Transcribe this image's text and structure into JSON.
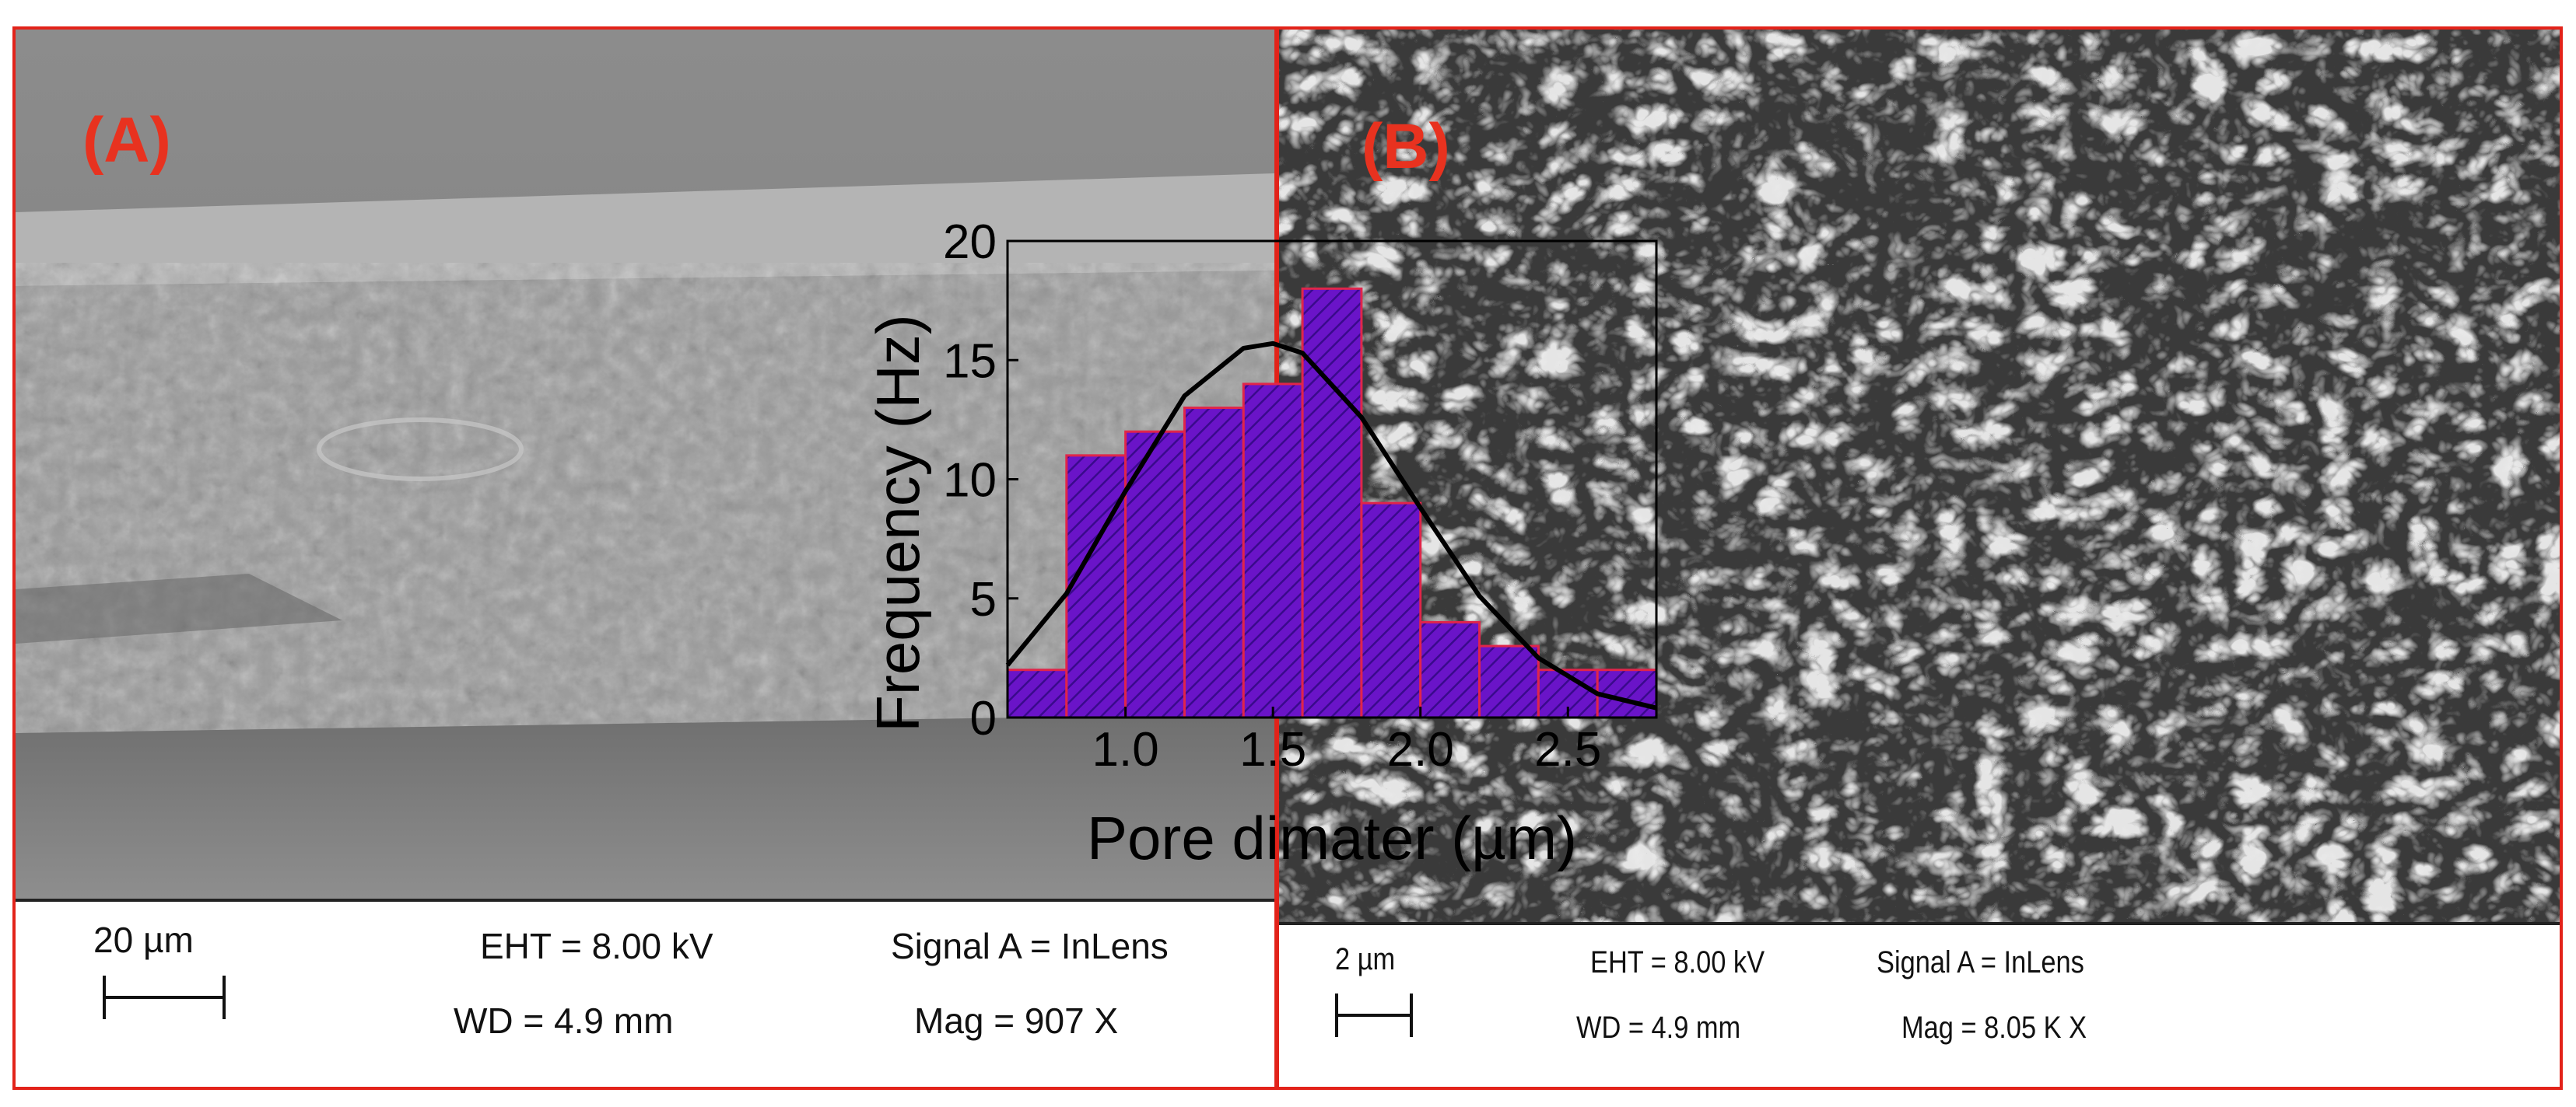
{
  "panels": [
    {
      "label": "(A)",
      "scale": "20 µm",
      "eht": "EHT =  8.00 kV",
      "wd": "WD =  4.9 mm",
      "signal": "Signal A = InLens",
      "mag": "Mag =    907 X"
    },
    {
      "label": "(B)",
      "scale": "2 µm",
      "eht": "EHT =  8.00 kV",
      "wd": "WD =  4.9 mm",
      "signal": "Signal A = InLens",
      "mag": "Mag =   8.05 K X"
    }
  ],
  "colors": {
    "panel_border": "#e2231a",
    "panel_label": "#e8321f",
    "bar_fill": "#6a14c8",
    "bar_edge": "#e0254a",
    "fit_curve": "#000000"
  },
  "chart_data": {
    "type": "bar",
    "bin_width": 0.2,
    "categories": [
      "0.6-0.8",
      "0.8-1.0",
      "1.0-1.2",
      "1.2-1.4",
      "1.4-1.6",
      "1.6-1.8",
      "1.8-2.0",
      "2.0-2.2",
      "2.2-2.4",
      "2.4-2.6",
      "2.6-2.8"
    ],
    "bin_starts": [
      0.6,
      0.8,
      1.0,
      1.2,
      1.4,
      1.6,
      1.8,
      2.0,
      2.2,
      2.4,
      2.6
    ],
    "values": [
      2,
      11,
      12,
      13,
      14,
      18,
      9,
      4,
      3,
      2,
      2
    ],
    "fit": {
      "type": "gaussian",
      "x": [
        0.6,
        0.8,
        1.0,
        1.2,
        1.4,
        1.5,
        1.6,
        1.8,
        2.0,
        2.2,
        2.4,
        2.6,
        2.8
      ],
      "y": [
        2.2,
        5.2,
        9.5,
        13.5,
        15.5,
        15.7,
        15.3,
        12.6,
        8.8,
        5.1,
        2.5,
        1.0,
        0.4
      ]
    },
    "xlabel": "Pore dimater (µm)",
    "ylabel": "Frequency (Hz)",
    "xlim": [
      0.6,
      2.8
    ],
    "ylim": [
      0,
      20
    ],
    "xticks": [
      1.0,
      1.5,
      2.0,
      2.5
    ],
    "xtick_labels": [
      "1.0",
      "1.5",
      "2.0",
      "2.5"
    ],
    "yticks": [
      0,
      5,
      10,
      15,
      20
    ],
    "ytick_labels": [
      "0",
      "5",
      "10",
      "15",
      "20"
    ],
    "grid": false,
    "legend": "none"
  }
}
